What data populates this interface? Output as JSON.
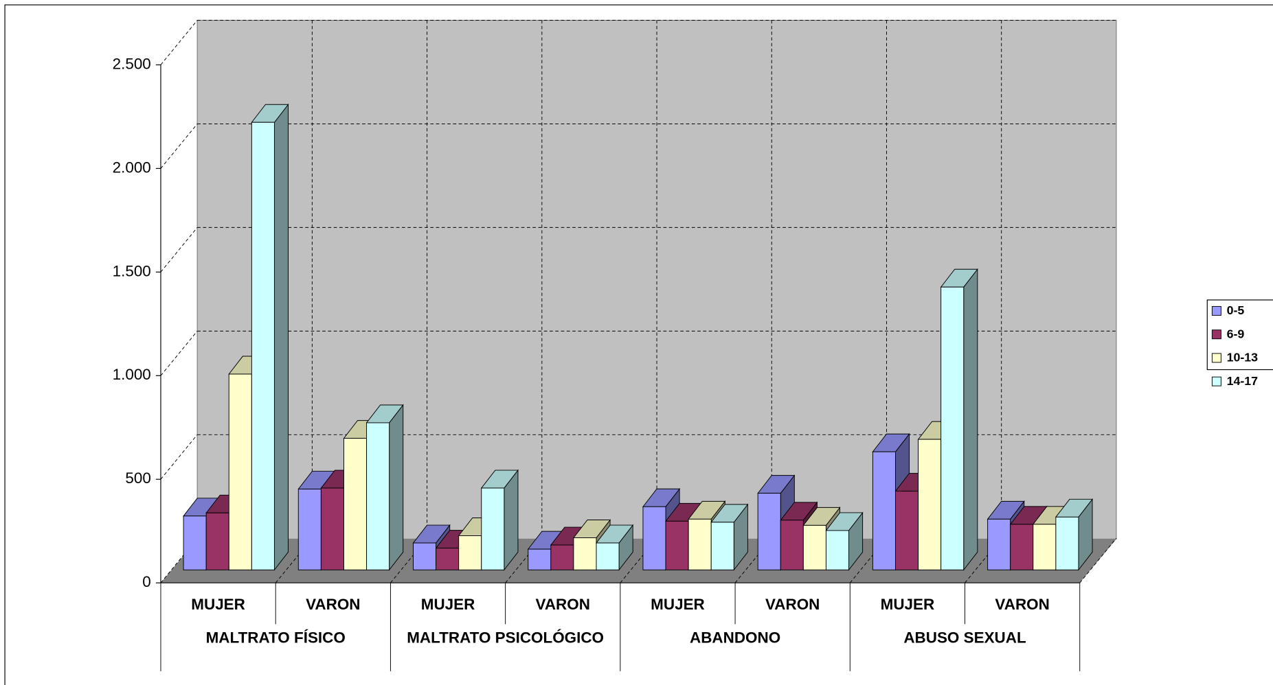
{
  "chart_data": {
    "type": "bar3d",
    "groups": [
      "MALTRATO FÍSICO",
      "MALTRATO PSICOLÓGICO",
      "ABANDONO",
      "ABUSO SEXUAL"
    ],
    "categories": [
      "MUJER",
      "VARON",
      "MUJER",
      "VARON",
      "MUJER",
      "VARON",
      "MUJER",
      "VARON"
    ],
    "series": [
      {
        "name": "0-5",
        "color": "#9999ff",
        "values": [
          260,
          390,
          130,
          100,
          305,
          370,
          570,
          245
        ]
      },
      {
        "name": "6-9",
        "color": "#993366",
        "values": [
          275,
          395,
          105,
          120,
          235,
          240,
          380,
          220
        ]
      },
      {
        "name": "10-13",
        "color": "#ffffcc",
        "values": [
          945,
          635,
          165,
          155,
          245,
          215,
          630,
          220
        ]
      },
      {
        "name": "14-17",
        "color": "#ccffff",
        "values": [
          2160,
          710,
          395,
          130,
          230,
          190,
          1365,
          255
        ]
      }
    ],
    "ylim": [
      0,
      2500
    ],
    "yticks": [
      0,
      500,
      {
        "value": 1000,
        "label": "1.000"
      },
      {
        "value": 1500,
        "label": "1.500"
      },
      {
        "value": 2000,
        "label": "2.000"
      },
      {
        "value": 2500,
        "label": "2.500"
      }
    ],
    "grid": true,
    "legend": "right"
  }
}
